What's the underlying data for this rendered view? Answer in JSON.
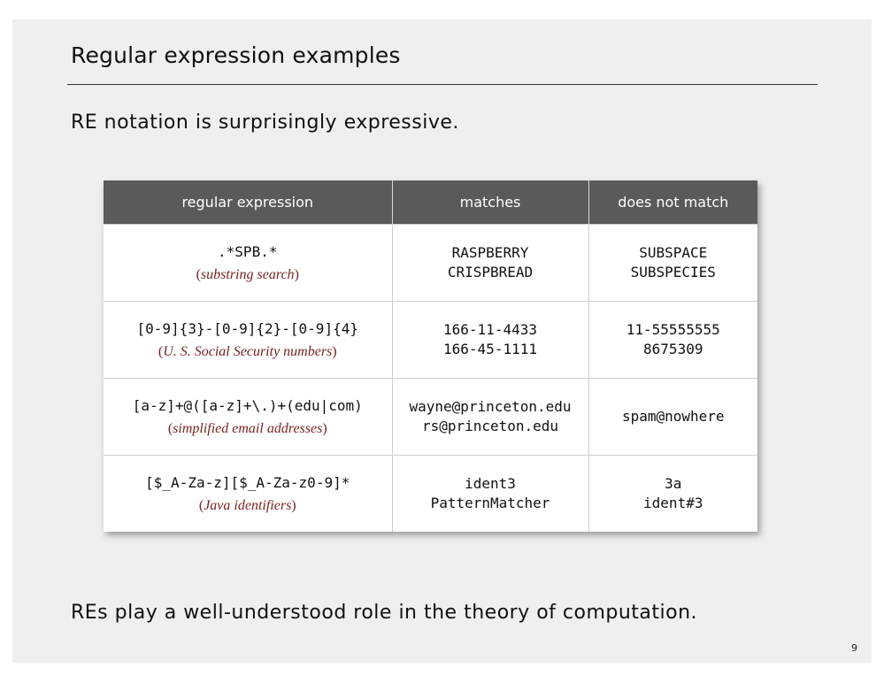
{
  "slide": {
    "title": "Regular expression examples",
    "subtitle": "RE notation is surprisingly expressive.",
    "footer": "REs play a well-understood role in the theory of computation.",
    "page_number": "9"
  },
  "table": {
    "headers": [
      "regular expression",
      "matches",
      "does not match"
    ],
    "rows": [
      {
        "regex": ".*SPB.*",
        "note_open": "(",
        "note": "substring search",
        "note_close": ")",
        "matches": [
          "RASPBERRY",
          "CRISPBREAD"
        ],
        "non_matches": [
          "SUBSPACE",
          "SUBSPECIES"
        ]
      },
      {
        "regex": "[0-9]{3}-[0-9]{2}-[0-9]{4}",
        "note_open": "(",
        "note": "U. S. Social Security numbers",
        "note_close": ")",
        "matches": [
          "166-11-4433",
          "166-45-1111"
        ],
        "non_matches": [
          "11-55555555",
          "8675309"
        ]
      },
      {
        "regex": "[a-z]+@([a-z]+\\.)+(edu|com)",
        "note_open": "(",
        "note": "simplified email addresses",
        "note_close": ")",
        "matches": [
          "wayne@princeton.edu",
          "rs@princeton.edu"
        ],
        "non_matches": [
          "spam@nowhere"
        ]
      },
      {
        "regex": "[$_A-Za-z][$_A-Za-z0-9]*",
        "note_open": "(",
        "note": "Java identifiers",
        "note_close": ")",
        "matches": [
          "ident3",
          "PatternMatcher"
        ],
        "non_matches": [
          "3a",
          "ident#3"
        ]
      }
    ]
  },
  "colors": {
    "header_bg": "#5a5a5a",
    "note_text": "#7a1f1f",
    "slide_bg": "#efefef"
  }
}
